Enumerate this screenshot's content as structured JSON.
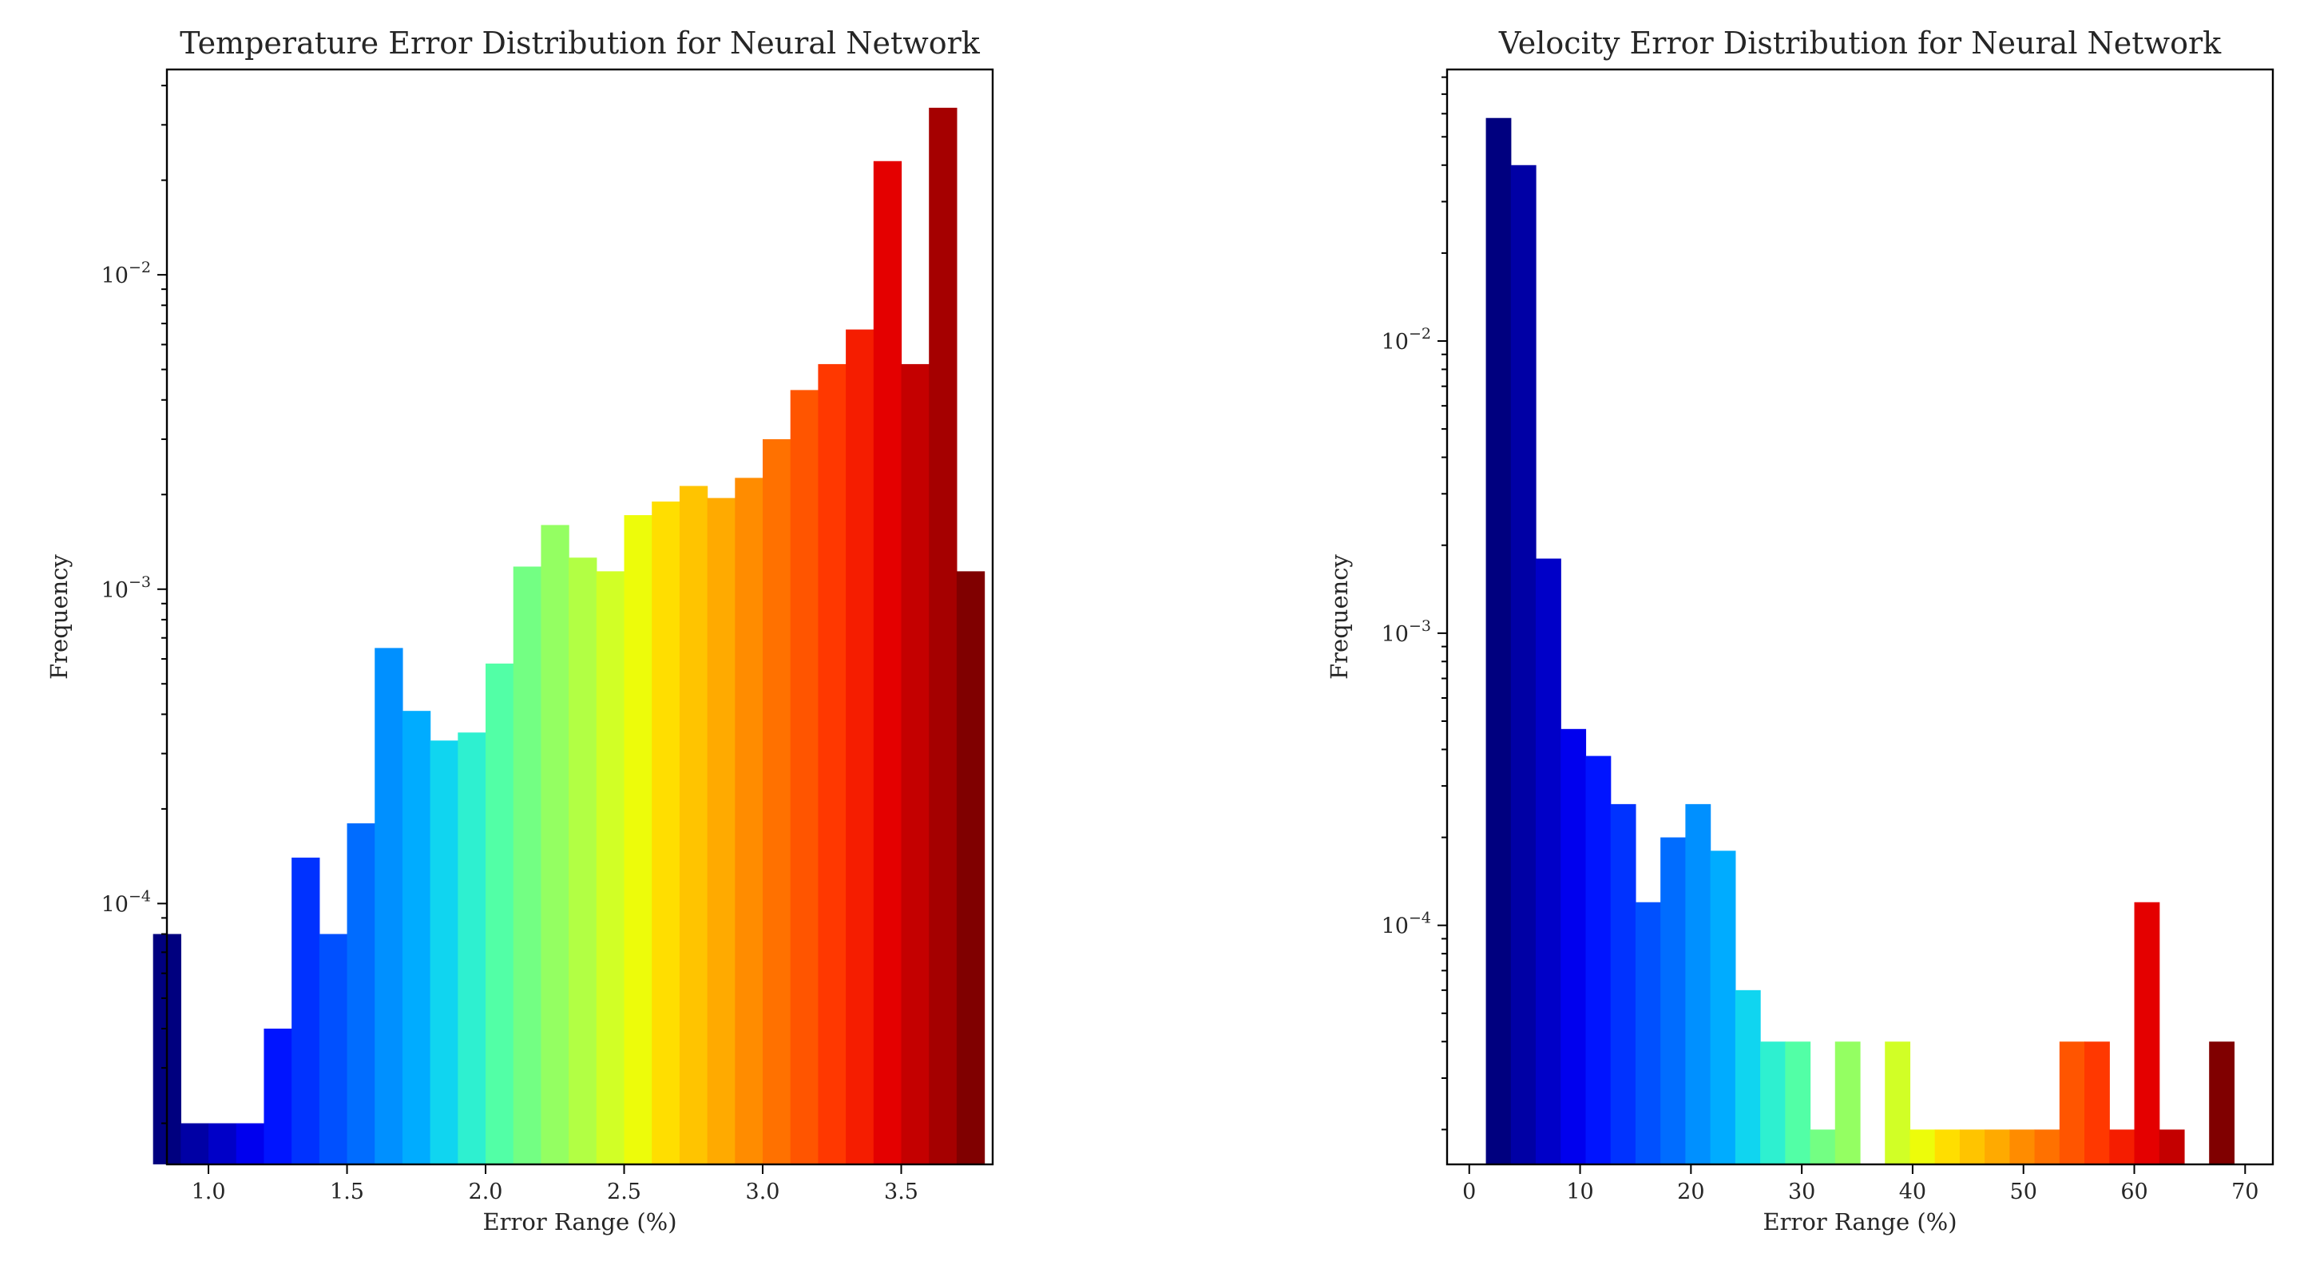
{
  "chart_data": [
    {
      "type": "bar",
      "title": "Temperature Error Distribution for Neural Network",
      "xlabel": "Error Range (%)",
      "ylabel": "Frequency",
      "yscale": "log",
      "xlim": [
        0.85,
        3.83
      ],
      "ylim": [
        1.48e-05,
        0.045
      ],
      "xticks": [
        1.0,
        1.5,
        2.0,
        2.5,
        3.0,
        3.5
      ],
      "xtick_labels": [
        "1.0",
        "1.5",
        "2.0",
        "2.5",
        "3.0",
        "3.5"
      ],
      "yticks": [
        0.0001,
        0.001,
        0.01
      ],
      "ytick_labels": [
        [
          "10",
          "−4"
        ],
        [
          "10",
          "−3"
        ],
        [
          "10",
          "−2"
        ]
      ],
      "bin_start": 0.8,
      "bin_width": 0.1,
      "colormap": "jet",
      "grid": false,
      "values": [
        8e-05,
        2e-05,
        2e-05,
        2e-05,
        4e-05,
        0.00014,
        8e-05,
        0.00018,
        0.00065,
        0.00041,
        0.00033,
        0.00035,
        0.00058,
        0.00118,
        0.0016,
        0.00126,
        0.00114,
        0.00172,
        0.0019,
        0.00213,
        0.00195,
        0.00226,
        0.003,
        0.0043,
        0.0052,
        0.0067,
        0.023,
        0.0052,
        0.034,
        0.00114
      ],
      "colors": [
        "#00007f",
        "#0000a5",
        "#0000c8",
        "#0000ee",
        "#0014ff",
        "#0032ff",
        "#0050ff",
        "#006cff",
        "#0090ff",
        "#00acff",
        "#10d5f0",
        "#2ef0d0",
        "#52ffa6",
        "#73ff83",
        "#94ff62",
        "#b2ff44",
        "#d1ff26",
        "#edfc0a",
        "#ffde00",
        "#ffc400",
        "#ffaa00",
        "#ff8c00",
        "#ff7100",
        "#ff5500",
        "#ff3800",
        "#f51d00",
        "#e40000",
        "#c40000",
        "#a50000",
        "#800000"
      ]
    },
    {
      "type": "bar",
      "title": "Velocity Error Distribution for Neural Network",
      "xlabel": "Error Range (%)",
      "ylabel": "Frequency",
      "yscale": "log",
      "xlim": [
        -2.0,
        72.5
      ],
      "ylim": [
        1.52e-05,
        0.085
      ],
      "xticks": [
        0,
        10,
        20,
        30,
        40,
        50,
        60,
        70
      ],
      "xtick_labels": [
        "0",
        "10",
        "20",
        "30",
        "40",
        "50",
        "60",
        "70"
      ],
      "yticks": [
        0.0001,
        0.001,
        0.01
      ],
      "ytick_labels": [
        [
          "10",
          "−4"
        ],
        [
          "10",
          "−3"
        ],
        [
          "10",
          "−2"
        ]
      ],
      "bin_start": 1.5,
      "bin_width": 2.25,
      "colormap": "jet",
      "grid": false,
      "values": [
        0.058,
        0.04,
        0.0018,
        0.00047,
        0.00038,
        0.00026,
        0.00012,
        0.0002,
        0.00026,
        0.00018,
        6e-05,
        4e-05,
        4e-05,
        2e-05,
        4e-05,
        0,
        4e-05,
        2e-05,
        2e-05,
        2e-05,
        2e-05,
        2e-05,
        2e-05,
        4e-05,
        4e-05,
        2e-05,
        0.00012,
        2e-05,
        0,
        4e-05
      ],
      "colors": [
        "#00007f",
        "#0000a5",
        "#0000c8",
        "#0000ee",
        "#0014ff",
        "#0032ff",
        "#0050ff",
        "#006cff",
        "#0090ff",
        "#00acff",
        "#10d5f0",
        "#2ef0d0",
        "#52ffa6",
        "#73ff83",
        "#94ff62",
        "#b2ff44",
        "#d1ff26",
        "#edfc0a",
        "#ffde00",
        "#ffc400",
        "#ffaa00",
        "#ff8c00",
        "#ff7100",
        "#ff5500",
        "#ff3800",
        "#f51d00",
        "#e40000",
        "#c40000",
        "#a50000",
        "#800000"
      ]
    }
  ]
}
